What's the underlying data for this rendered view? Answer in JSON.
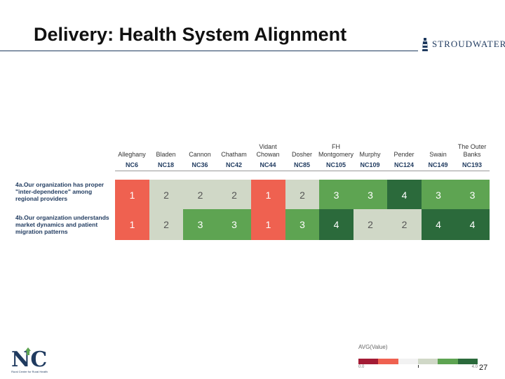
{
  "slide": {
    "title": "Delivery:  Health System Alignment",
    "page_number": "27"
  },
  "brand": {
    "name": "STROUDWATER",
    "icon": "lighthouse-icon"
  },
  "columns": [
    {
      "name": "Alleghany",
      "code": "NC6"
    },
    {
      "name": "Bladen",
      "code": "NC18"
    },
    {
      "name": "Cannon",
      "code": "NC36"
    },
    {
      "name": "Chatham",
      "code": "NC42"
    },
    {
      "name": "Vidant Chowan",
      "code": "NC44"
    },
    {
      "name": "Dosher",
      "code": "NC85"
    },
    {
      "name": "FH Montgomery",
      "code": "NC105"
    },
    {
      "name": "Murphy",
      "code": "NC109"
    },
    {
      "name": "Pender",
      "code": "NC124"
    },
    {
      "name": "Swain",
      "code": "NC149"
    },
    {
      "name": "The Outer Banks",
      "code": "NC193"
    }
  ],
  "rows": [
    {
      "label": "4a.Our organization has proper \"inter-dependence\" among regional providers",
      "values": [
        1,
        2,
        2,
        2,
        1,
        2,
        3,
        3,
        4,
        3,
        3
      ]
    },
    {
      "label": "4b.Our organization understands market dynamics and patient migration patterns",
      "values": [
        1,
        2,
        3,
        3,
        1,
        3,
        4,
        2,
        2,
        4,
        4
      ]
    }
  ],
  "colors": {
    "1": "#ef6150",
    "2": "#d0d8c7",
    "3": "#5ea452",
    "4": "#2b6a3b",
    "text_light": "#ffffff",
    "text_dark": "#555555"
  },
  "legend": {
    "title": "AVG(Value)",
    "min": "0.0",
    "max": "4.0",
    "steps": [
      "#a31b35",
      "#ef6150",
      "#f2f2f2",
      "#d0d8c7",
      "#5ea452",
      "#2b6a3b"
    ]
  },
  "nc_logo": {
    "letters": "NC",
    "subtitle": "Rural Center for Rural Health"
  }
}
